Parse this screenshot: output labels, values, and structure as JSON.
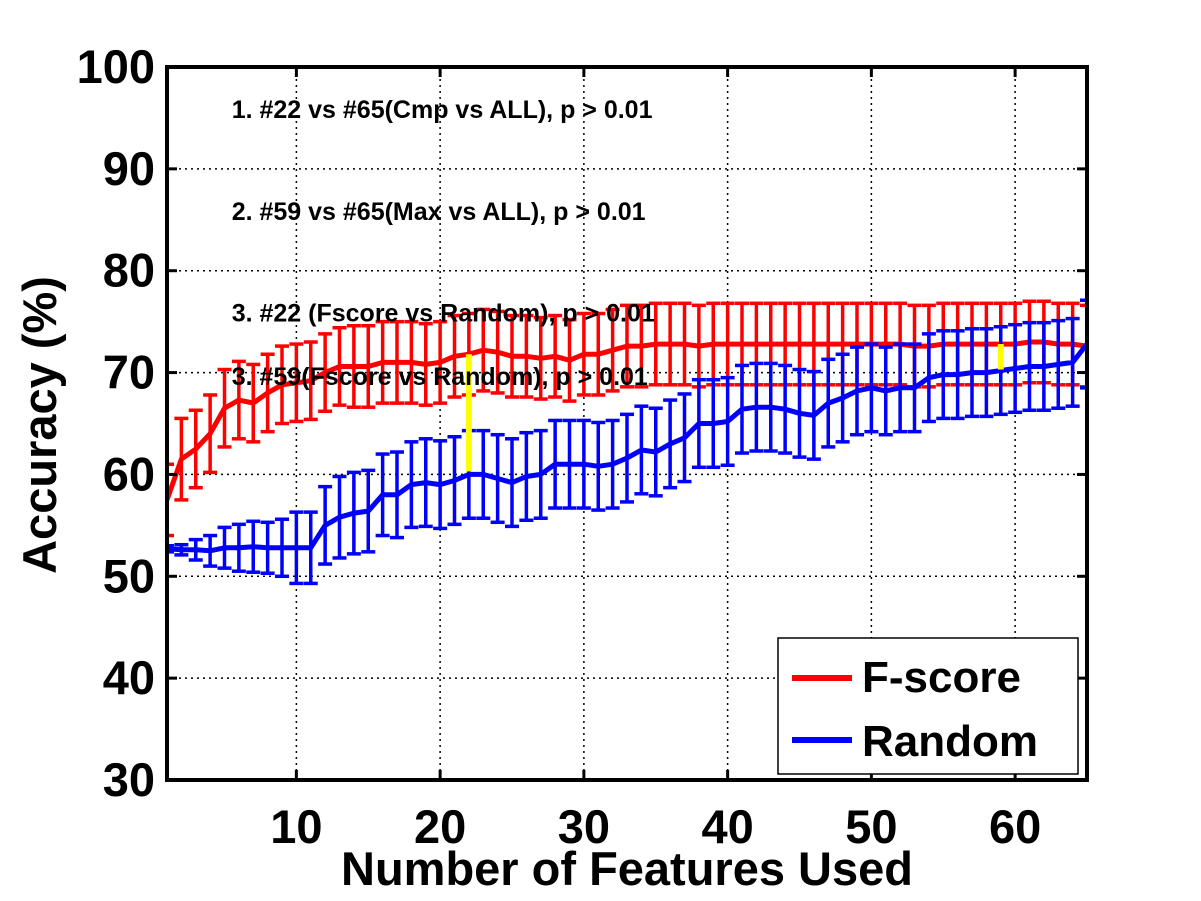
{
  "chart_data": {
    "type": "line",
    "title": "",
    "xlabel": "Number of Features Used",
    "ylabel": "Accuracy (%)",
    "xlim": [
      1,
      65
    ],
    "ylim": [
      30,
      100
    ],
    "xticks": [
      10,
      20,
      30,
      40,
      50,
      60
    ],
    "yticks": [
      30,
      40,
      50,
      60,
      70,
      80,
      90,
      100
    ],
    "grid": true,
    "legend_position": "bottom-right",
    "x": [
      1,
      2,
      3,
      4,
      5,
      6,
      7,
      8,
      9,
      10,
      11,
      12,
      13,
      14,
      15,
      16,
      17,
      18,
      19,
      20,
      21,
      22,
      23,
      24,
      25,
      26,
      27,
      28,
      29,
      30,
      31,
      32,
      33,
      34,
      35,
      36,
      37,
      38,
      39,
      40,
      41,
      42,
      43,
      44,
      45,
      46,
      47,
      48,
      49,
      50,
      51,
      52,
      53,
      54,
      55,
      56,
      57,
      58,
      59,
      60,
      61,
      62,
      63,
      64,
      65
    ],
    "series": [
      {
        "name": "F-score",
        "color": "#ff0000",
        "values": [
          57.5,
          61.5,
          62.5,
          64.0,
          66.5,
          67.3,
          67.0,
          68.0,
          68.8,
          69.0,
          69.2,
          70.0,
          70.6,
          70.6,
          70.6,
          71.0,
          71.0,
          71.0,
          70.8,
          71.0,
          71.6,
          71.8,
          72.2,
          72.0,
          71.6,
          71.6,
          71.4,
          71.6,
          71.2,
          71.8,
          71.8,
          72.2,
          72.6,
          72.6,
          72.8,
          72.8,
          72.8,
          72.6,
          72.8,
          72.8,
          72.8,
          72.8,
          72.8,
          72.8,
          72.8,
          72.8,
          72.8,
          72.8,
          72.8,
          72.8,
          72.8,
          72.8,
          72.6,
          72.6,
          72.8,
          72.8,
          72.8,
          72.8,
          72.8,
          72.8,
          73.0,
          73.0,
          72.8,
          72.8,
          72.6
        ],
        "errors": [
          3.5,
          4.0,
          3.8,
          3.8,
          3.8,
          3.8,
          3.8,
          3.8,
          3.8,
          3.8,
          3.8,
          3.8,
          3.8,
          4.0,
          4.0,
          4.0,
          4.0,
          4.0,
          4.0,
          4.0,
          4.0,
          4.0,
          4.0,
          4.0,
          4.0,
          4.0,
          4.0,
          4.0,
          4.0,
          4.0,
          4.0,
          4.0,
          4.0,
          4.0,
          4.0,
          4.0,
          4.0,
          4.0,
          4.0,
          4.0,
          4.0,
          4.0,
          4.0,
          4.0,
          4.0,
          4.0,
          4.0,
          4.0,
          4.0,
          4.0,
          4.0,
          4.0,
          4.0,
          4.0,
          4.0,
          4.0,
          4.0,
          4.0,
          4.0,
          4.0,
          4.0,
          4.0,
          4.0,
          4.0,
          4.0
        ]
      },
      {
        "name": "Random",
        "color": "#0000ff",
        "values": [
          52.7,
          52.6,
          52.6,
          52.5,
          52.8,
          52.8,
          52.9,
          52.8,
          52.8,
          52.8,
          52.8,
          55.0,
          55.8,
          56.2,
          56.4,
          58.0,
          58.0,
          59.0,
          59.2,
          59.0,
          59.4,
          60.0,
          60.0,
          59.6,
          59.2,
          59.8,
          60.0,
          61.0,
          61.0,
          61.0,
          60.8,
          61.0,
          61.6,
          62.4,
          62.2,
          63.0,
          63.6,
          65.0,
          65.0,
          65.2,
          66.4,
          66.6,
          66.6,
          66.4,
          66.0,
          65.8,
          67.0,
          67.5,
          68.2,
          68.5,
          68.2,
          68.5,
          68.5,
          69.5,
          69.8,
          69.8,
          70.0,
          70.0,
          70.2,
          70.4,
          70.6,
          70.6,
          70.8,
          71.0,
          72.8
        ],
        "errors": [
          0.3,
          0.5,
          1.0,
          1.5,
          2.0,
          2.3,
          2.5,
          2.5,
          2.8,
          3.5,
          3.5,
          3.8,
          4.0,
          4.0,
          4.0,
          4.0,
          4.2,
          4.2,
          4.3,
          4.3,
          4.3,
          4.3,
          4.3,
          4.3,
          4.3,
          4.3,
          4.3,
          4.3,
          4.3,
          4.3,
          4.3,
          4.3,
          4.3,
          4.3,
          4.3,
          4.3,
          4.3,
          4.3,
          4.3,
          4.3,
          4.3,
          4.3,
          4.3,
          4.3,
          4.3,
          4.3,
          4.3,
          4.3,
          4.3,
          4.3,
          4.3,
          4.3,
          4.3,
          4.3,
          4.3,
          4.3,
          4.3,
          4.3,
          4.3,
          4.3,
          4.3,
          4.3,
          4.3,
          4.3,
          4.3
        ]
      }
    ],
    "highlights": [
      {
        "x": 22,
        "low": 60.3,
        "high": 71.8,
        "color": "#ffff00"
      },
      {
        "x": 59,
        "low": 70.3,
        "high": 72.8,
        "color": "#ffff00"
      }
    ],
    "annotations": [
      {
        "text": "1. #22 vs #65(Cmp vs ALL), p > 0.01",
        "x": 5.5,
        "y": 95.0
      },
      {
        "text": "2. #59 vs #65(Max vs ALL), p > 0.01",
        "x": 5.5,
        "y": 85.0
      },
      {
        "text": "3. #22 (Fscore vs Random), p > 0.01",
        "x": 5.5,
        "y": 75.0
      },
      {
        "text": "3. #59(Fscore vs Random), p > 0.01",
        "x": 5.5,
        "y": 68.8
      }
    ]
  }
}
